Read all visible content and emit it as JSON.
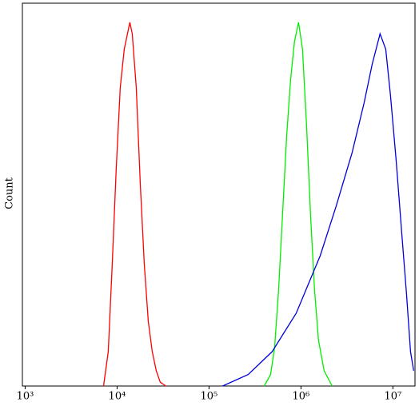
{
  "chart_data": {
    "type": "line",
    "ylabel": "Count",
    "xscale": "log",
    "xlim": [
      933,
      17400000
    ],
    "ylim": [
      0,
      100
    ],
    "xticks": [
      {
        "value": 1000,
        "label": "10³"
      },
      {
        "value": 10000,
        "label": "10⁴"
      },
      {
        "value": 100000,
        "label": "10⁵"
      },
      {
        "value": 1000000,
        "label": "10⁶"
      },
      {
        "value": 10000000,
        "label": "10⁷"
      }
    ],
    "series": [
      {
        "color": "#ff0000",
        "x": [
          7120,
          8020,
          8870,
          9800,
          10830,
          11970,
          13230,
          13770,
          14630,
          16170,
          17870,
          19760,
          21840,
          24140,
          26680,
          29490,
          33900
        ],
        "values": [
          0,
          9,
          32,
          57,
          78,
          88,
          93,
          95,
          92,
          78,
          53,
          32,
          17,
          9,
          4,
          1,
          0
        ]
      },
      {
        "color": "#00ee00",
        "x": [
          398000,
          467700,
          516800,
          571300,
          631000,
          697300,
          771000,
          851200,
          941600,
          1040000,
          1151000,
          1271000,
          1406000,
          1552000,
          1786000,
          2183000
        ],
        "values": [
          0,
          3,
          10,
          25,
          45,
          65,
          80,
          90,
          95,
          88,
          68,
          45,
          25,
          12,
          4,
          0
        ]
      },
      {
        "color": "#0000dd",
        "x": [
          140600,
          266800,
          486200,
          887400,
          1619000,
          2415000,
          3603000,
          4868000,
          5943000,
          7259000,
          8356000,
          9418000,
          10840000,
          12480000,
          14060000,
          15540000,
          16820000
        ],
        "values": [
          0,
          3,
          9,
          19,
          34,
          47,
          61,
          74,
          84,
          92,
          88,
          76,
          59,
          40,
          24,
          9,
          4
        ]
      }
    ]
  }
}
